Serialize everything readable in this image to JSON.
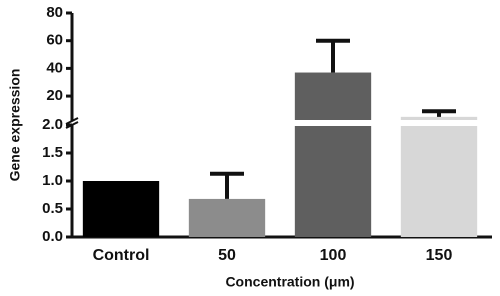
{
  "chart_data": {
    "type": "bar",
    "x_label": "Concentration (μm)",
    "y_label": "Gene expression",
    "categories": [
      "Control",
      "50",
      "100",
      "150"
    ],
    "values": [
      1.0,
      0.68,
      37,
      5
    ],
    "errors": [
      null,
      0.45,
      23,
      4
    ],
    "colors": [
      "#000000",
      "#8c8c8c",
      "#5f5f5f",
      "#d7d7d7"
    ],
    "segments": [
      {
        "ylim": [
          0,
          2
        ],
        "yticks": [
          {
            "value": 0,
            "label": "0.0"
          },
          0.5,
          {
            "value": 1,
            "label": "1.0"
          },
          1.5,
          {
            "value": 2,
            "label": "2.0"
          }
        ]
      },
      {
        "ylim": [
          2,
          80
        ],
        "yticks": [
          20,
          40,
          60,
          80
        ]
      }
    ]
  }
}
